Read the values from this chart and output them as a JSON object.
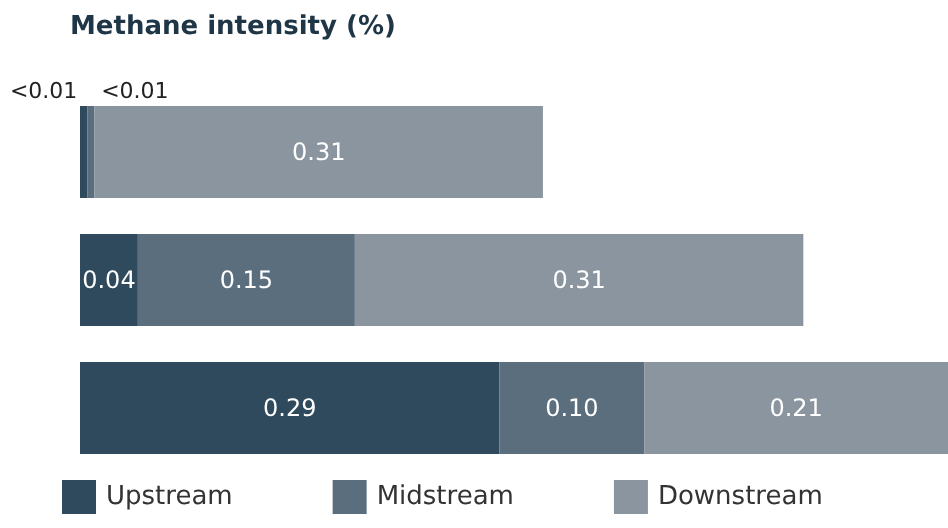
{
  "chart_data": {
    "type": "bar",
    "orientation": "horizontal",
    "stacked": true,
    "title": "Methane intensity (%)",
    "categories": [
      null,
      null,
      null
    ],
    "series": [
      {
        "name": "Upstream",
        "color": "#2f4a5c",
        "values": [
          0.005,
          0.04,
          0.29
        ],
        "value_labels": [
          "<0.01",
          "0.04",
          "0.29"
        ]
      },
      {
        "name": "Midstream",
        "color": "#5b6e7d",
        "values": [
          0.005,
          0.15,
          0.1
        ],
        "value_labels": [
          "<0.01",
          "0.15",
          "0.10"
        ]
      },
      {
        "name": "Downstream",
        "color": "#8a959f",
        "values": [
          0.31,
          0.31,
          0.21
        ],
        "value_labels": [
          "0.31",
          "0.31",
          "0.21"
        ]
      }
    ],
    "legend": "bottom left"
  }
}
